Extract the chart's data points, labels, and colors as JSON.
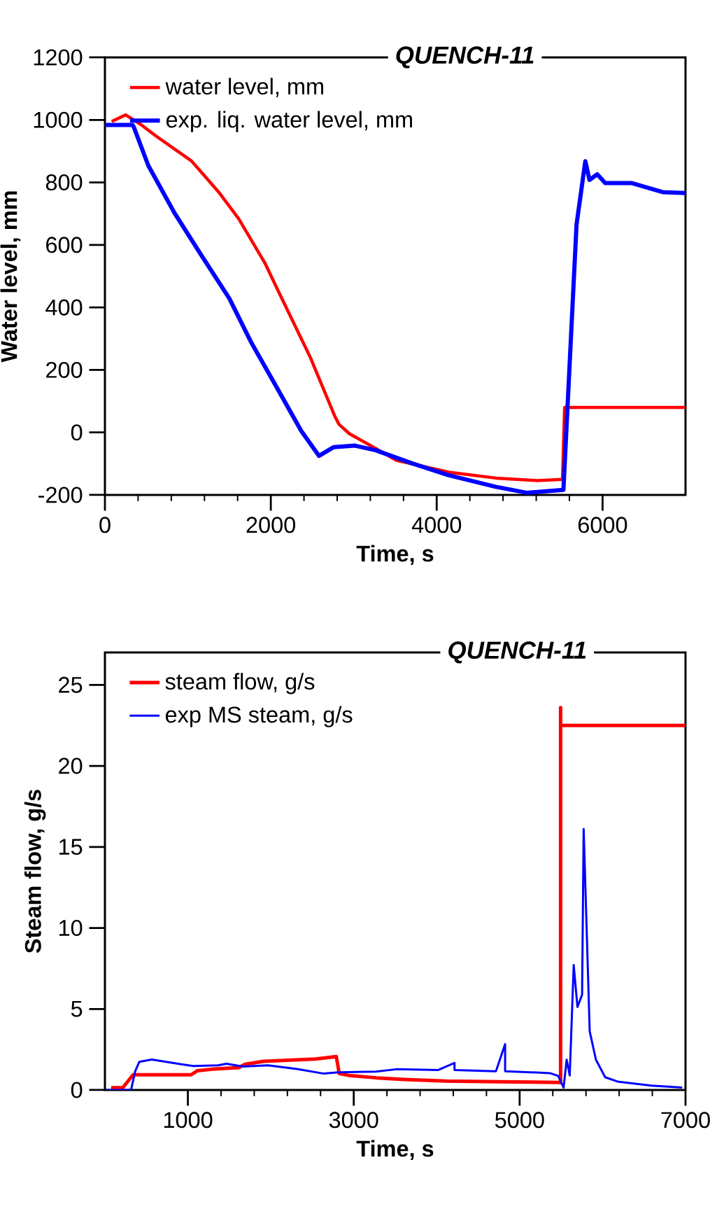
{
  "chart_data": [
    {
      "type": "line",
      "title": "QUENCH-11",
      "xlabel": "Time, s",
      "ylabel": "Water level,  mm",
      "legend": "top left",
      "xlim": [
        0,
        7000
      ],
      "ylim": [
        -200,
        1200
      ],
      "xticks": [
        0,
        2000,
        4000,
        6000
      ],
      "yticks": [
        -200,
        0,
        200,
        400,
        600,
        800,
        1000,
        1200
      ],
      "series": [
        {
          "name": "water level, mm",
          "color": "#ff0000",
          "x": [
            82,
            250,
            429,
            618,
            1046,
            1372,
            1612,
            1927,
            2098,
            2475,
            2771,
            2822,
            2947,
            3263,
            3514,
            4145,
            4712,
            5214,
            5517,
            5542,
            7000
          ],
          "values": [
            995,
            1016,
            986,
            948,
            868,
            769,
            684,
            543,
            448,
            241,
            52,
            26,
            -4,
            -51,
            -89,
            -127,
            -146,
            -154,
            -150,
            80,
            80
          ]
        },
        {
          "name": "exp. liq.  water level, mm",
          "color": "#0000ff",
          "x": [
            0,
            334,
            350,
            523,
            837,
            1153,
            1499,
            1764,
            2065,
            2367,
            2581,
            2759,
            3010,
            3263,
            3703,
            4145,
            4712,
            5087,
            5528,
            5686,
            5792,
            5842,
            5936,
            6032,
            6348,
            6724,
            7000
          ],
          "values": [
            984,
            984,
            976,
            854,
            703,
            571,
            429,
            288,
            147,
            5,
            -75,
            -47,
            -42,
            -57,
            -99,
            -137,
            -174,
            -193,
            -184,
            665,
            868,
            808,
            826,
            798,
            798,
            769,
            766
          ]
        }
      ]
    },
    {
      "type": "line",
      "title": "QUENCH-11",
      "xlabel": "Time, s",
      "ylabel": "Steam flow,  g/s",
      "legend": "top left",
      "xlim": [
        0,
        7000
      ],
      "ylim": [
        0,
        27
      ],
      "xticks": [
        1000,
        3000,
        5000,
        7000
      ],
      "yticks": [
        0,
        5,
        10,
        15,
        20,
        25
      ],
      "series": [
        {
          "name": "steam flow, g/s",
          "color": "#ff0000",
          "x": [
            75,
            215,
            340,
            1040,
            1115,
            1290,
            1615,
            1690,
            1915,
            2540,
            2790,
            2825,
            2940,
            3275,
            3615,
            4115,
            4765,
            5494,
            5494,
            5494,
            7000
          ],
          "values": [
            0.14,
            0.14,
            0.94,
            0.94,
            1.19,
            1.28,
            1.38,
            1.59,
            1.77,
            1.91,
            2.06,
            1.01,
            0.9,
            0.75,
            0.65,
            0.55,
            0.51,
            0.46,
            23.6,
            22.5,
            22.5
          ]
        },
        {
          "name": "exp MS steam,  g/s",
          "color": "#0000ff",
          "x": [
            15,
            315,
            365,
            415,
            565,
            815,
            1065,
            1365,
            1465,
            1665,
            1965,
            2315,
            2640,
            2815,
            3265,
            3515,
            4015,
            4215,
            4215,
            4715,
            4825,
            4825,
            5365,
            5465,
            5530,
            5567,
            5604,
            5652,
            5697,
            5753,
            5772,
            5845,
            5920,
            6031,
            6180,
            6588,
            6960
          ],
          "values": [
            0,
            0,
            1.16,
            1.74,
            1.88,
            1.67,
            1.48,
            1.52,
            1.62,
            1.45,
            1.52,
            1.3,
            1.01,
            1.09,
            1.13,
            1.28,
            1.23,
            1.67,
            1.23,
            1.16,
            2.83,
            1.16,
            1.04,
            0.87,
            0.15,
            1.87,
            0.9,
            7.71,
            5.12,
            5.88,
            16.1,
            3.61,
            1.87,
            0.79,
            0.52,
            0.27,
            0.15
          ]
        }
      ]
    }
  ]
}
